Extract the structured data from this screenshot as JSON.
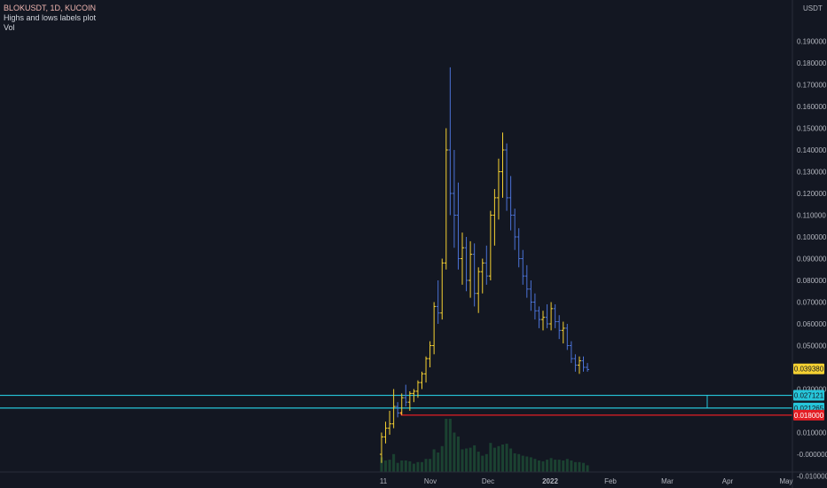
{
  "legend": {
    "symbol_line": "BLOKUSDT, 1D, KUCOIN",
    "indicator_1": "Highs and lows labels plot",
    "indicator_2": "Vol"
  },
  "price_axis": {
    "currency": "USDT",
    "ticks": [
      "0.190000",
      "0.180000",
      "0.170000",
      "0.160000",
      "0.150000",
      "0.140000",
      "0.130000",
      "0.120000",
      "0.110000",
      "0.100000",
      "0.090000",
      "0.080000",
      "0.070000",
      "0.060000",
      "0.050000",
      "0.030000",
      "0.010000",
      "-0.000000",
      "-0.010000"
    ]
  },
  "time_axis": {
    "ticks": [
      "11",
      "Nov",
      "Dec",
      "2022",
      "Feb",
      "Mar",
      "Apr",
      "May"
    ]
  },
  "price_labels": {
    "last_price": "0.039380",
    "upper_level": "0.027121",
    "lower_level": "0.021265",
    "low_level": "0.018000"
  },
  "colors": {
    "background": "#131722",
    "up_bar": "#f5d132",
    "down_bar": "#4b72d6",
    "level_line": "#26c6da",
    "low_line": "#e31e24",
    "last_price_bg": "#f5d132",
    "volume": "#1e4d36",
    "axis_text": "#b2b5be"
  },
  "chart_data": {
    "type": "ohlc",
    "series": [
      {
        "name": "BLOKUSDT",
        "values": [
          [
            0.0,
            0.01,
            -0.004,
            0.008
          ],
          [
            0.008,
            0.015,
            0.005,
            0.012
          ],
          [
            0.012,
            0.02,
            0.009,
            0.014
          ],
          [
            0.014,
            0.03,
            0.012,
            0.022
          ],
          [
            0.022,
            0.024,
            0.017,
            0.019
          ],
          [
            0.019,
            0.028,
            0.018,
            0.026
          ],
          [
            0.026,
            0.032,
            0.022,
            0.024
          ],
          [
            0.024,
            0.029,
            0.02,
            0.028
          ],
          [
            0.028,
            0.03,
            0.024,
            0.029
          ],
          [
            0.029,
            0.034,
            0.026,
            0.033
          ],
          [
            0.033,
            0.038,
            0.03,
            0.037
          ],
          [
            0.037,
            0.045,
            0.033,
            0.044
          ],
          [
            0.044,
            0.052,
            0.04,
            0.05
          ],
          [
            0.05,
            0.07,
            0.046,
            0.068
          ],
          [
            0.068,
            0.08,
            0.06,
            0.065
          ],
          [
            0.065,
            0.09,
            0.062,
            0.088
          ],
          [
            0.088,
            0.15,
            0.085,
            0.14
          ],
          [
            0.14,
            0.178,
            0.11,
            0.12
          ],
          [
            0.12,
            0.14,
            0.095,
            0.11
          ],
          [
            0.11,
            0.125,
            0.085,
            0.09
          ],
          [
            0.09,
            0.102,
            0.078,
            0.095
          ],
          [
            0.095,
            0.1,
            0.075,
            0.08
          ],
          [
            0.08,
            0.098,
            0.072,
            0.092
          ],
          [
            0.092,
            0.097,
            0.068,
            0.074
          ],
          [
            0.074,
            0.086,
            0.065,
            0.084
          ],
          [
            0.084,
            0.09,
            0.074,
            0.088
          ],
          [
            0.088,
            0.096,
            0.078,
            0.082
          ],
          [
            0.082,
            0.112,
            0.08,
            0.11
          ],
          [
            0.11,
            0.122,
            0.096,
            0.118
          ],
          [
            0.118,
            0.136,
            0.108,
            0.13
          ],
          [
            0.13,
            0.148,
            0.118,
            0.14
          ],
          [
            0.14,
            0.143,
            0.112,
            0.118
          ],
          [
            0.118,
            0.128,
            0.103,
            0.11
          ],
          [
            0.11,
            0.113,
            0.094,
            0.1
          ],
          [
            0.1,
            0.104,
            0.086,
            0.09
          ],
          [
            0.09,
            0.094,
            0.078,
            0.082
          ],
          [
            0.082,
            0.087,
            0.072,
            0.076
          ],
          [
            0.076,
            0.08,
            0.066,
            0.07
          ],
          [
            0.07,
            0.074,
            0.062,
            0.066
          ],
          [
            0.066,
            0.068,
            0.058,
            0.062
          ],
          [
            0.062,
            0.066,
            0.057,
            0.063
          ],
          [
            0.063,
            0.069,
            0.058,
            0.06
          ],
          [
            0.06,
            0.07,
            0.057,
            0.067
          ],
          [
            0.067,
            0.069,
            0.058,
            0.061
          ],
          [
            0.061,
            0.064,
            0.053,
            0.057
          ],
          [
            0.057,
            0.061,
            0.051,
            0.058
          ],
          [
            0.058,
            0.06,
            0.048,
            0.05
          ],
          [
            0.05,
            0.052,
            0.042,
            0.044
          ],
          [
            0.044,
            0.046,
            0.038,
            0.041
          ],
          [
            0.041,
            0.045,
            0.037,
            0.043
          ],
          [
            0.043,
            0.045,
            0.038,
            0.04
          ],
          [
            0.04,
            0.042,
            0.038,
            0.039
          ]
        ]
      }
    ],
    "ylim": [
      -0.013,
      0.195
    ],
    "levels": [
      0.027121,
      0.021265,
      0.018
    ]
  }
}
